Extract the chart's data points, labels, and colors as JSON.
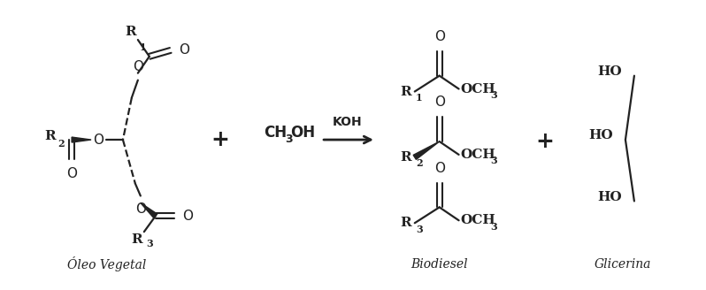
{
  "bg_color": "#ffffff",
  "fig_width": 7.98,
  "fig_height": 3.28,
  "dpi": 100,
  "text_color": "#222222",
  "label_oleo": "Óleo Vegetal",
  "label_biodiesel": "Biodiesel",
  "label_glicerina": "Glicerina"
}
